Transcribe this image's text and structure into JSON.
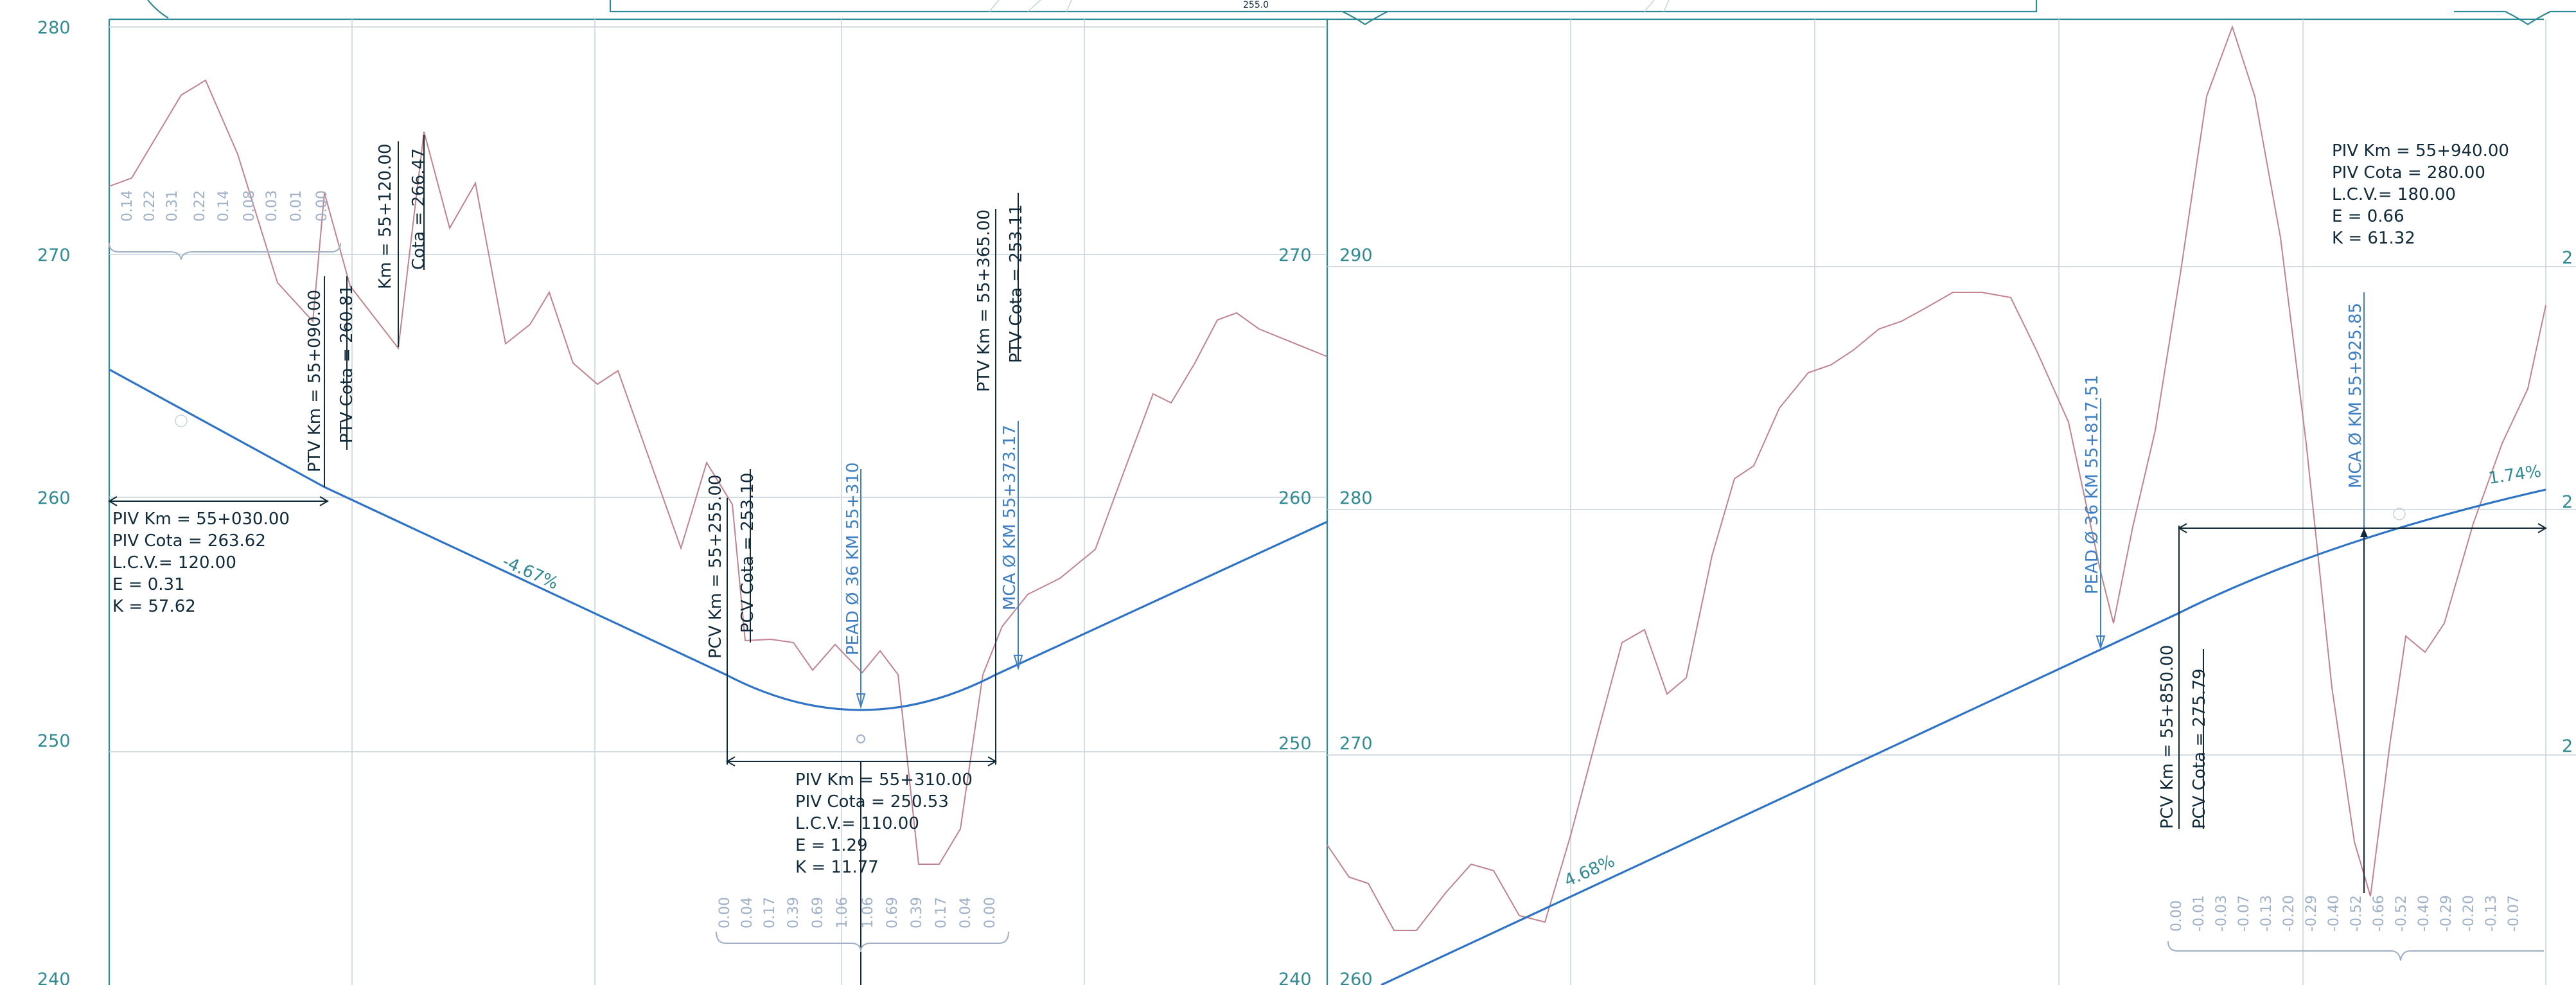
{
  "panels": [
    {
      "elevation_labels": [
        "280",
        "270",
        "260",
        "250",
        "240"
      ],
      "grades": [
        "-4.67%"
      ],
      "fill_values": [
        "0.14",
        "0.22",
        "0.31",
        "0.22",
        "0.14",
        "0.08",
        "0.03",
        "0.01",
        "0.00"
      ],
      "cut_fill_values": [
        "0.00",
        "0.04",
        "0.17",
        "0.39",
        "0.69",
        "1.06",
        "1.06",
        "0.69",
        "0.39",
        "0.17",
        "0.04",
        "0.00"
      ],
      "curves": [
        {
          "piv_km": "PIV Km  =  55+030.00",
          "piv_cota": "PIV Cota  =  263.62",
          "lcv": "L.C.V.=  120.00",
          "e": "E  =  0.31",
          "k": "K  =  57.62"
        },
        {
          "pcv_km": "PCV Km  =  55+255.00",
          "pcv_cota": "PCV Cota  =  253.10",
          "ptv_km": "PTV Km  =  55+365.00",
          "ptv_cota": "PTV Cota  =  253.11",
          "piv_km": "PIV Km  =  55+310.00",
          "piv_cota": "PIV Cota  =  250.53",
          "lcv": "L.C.V.=  110.00",
          "e": "E  =  1.29",
          "k": "K  =  11.77"
        }
      ],
      "ptv_first": {
        "km": "PTV Km  =  55+090.00",
        "cota": "PTV Cota  =  260.81"
      },
      "point": {
        "km": "Km  =  55+120.00",
        "cota": "Cota  =  266.47"
      },
      "culverts": [
        "PEAD  Ø  36  KM  55+310",
        "MCA  Ø   KM  55+373.17"
      ]
    },
    {
      "elevation_labels_left": [
        "270",
        "260",
        "250",
        "240"
      ],
      "elevation_labels_right": [
        "290",
        "280",
        "270",
        "260"
      ],
      "elevation_labels_far": [
        "2",
        "2",
        "2"
      ],
      "grades": [
        "4.68%",
        "1.74%"
      ],
      "cut_fill_values": [
        "0.00",
        "-0.01",
        "-0.03",
        "-0.07",
        "-0.13",
        "-0.20",
        "-0.29",
        "-0.40",
        "-0.52",
        "-0.66",
        "-0.52",
        "-0.40",
        "-0.29",
        "-0.20",
        "-0.13",
        "-0.07"
      ],
      "pcv": {
        "km": "PCV Km  =  55+850.00",
        "cota": "PCV Cota  =  275.79"
      },
      "piv": {
        "km": "PIV Km  =  55+940.00",
        "cota": "PIV Cota  =  280.00",
        "lcv": "L.C.V.=  180.00",
        "e": "E  =  0.66",
        "k": "K  =  61.32"
      },
      "culverts": [
        "PEAD  Ø  36  KM  55+817.51",
        "MCA  Ø   KM  55+925.85"
      ]
    }
  ],
  "inset_label": "255.0"
}
